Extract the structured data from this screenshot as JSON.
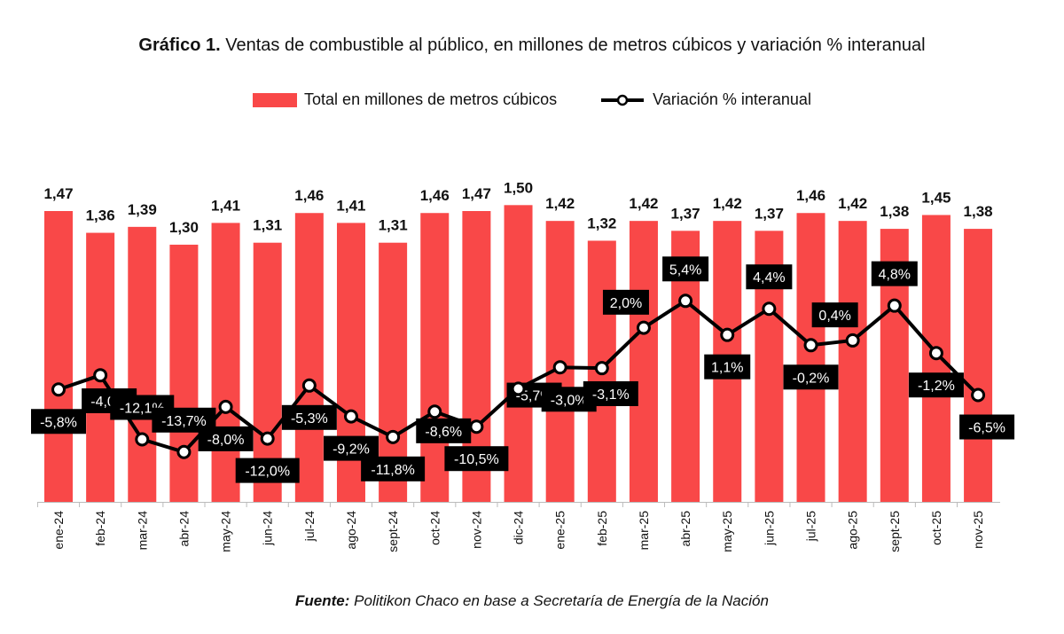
{
  "title": {
    "bold": "Gráfico 1.",
    "text": "Ventas de combustible al público, en millones de metros cúbicos y variación % interanual"
  },
  "source": {
    "bold": "Fuente:",
    "text": "Politikon Chaco en base a Secretaría de Energía de la Nación"
  },
  "chart_data": {
    "type": "bar",
    "categories": [
      "ene-24",
      "feb-24",
      "mar-24",
      "abr-24",
      "may-24",
      "jun-24",
      "jul-24",
      "ago-24",
      "sept-24",
      "oct-24",
      "nov-24",
      "dic-24",
      "ene-25",
      "feb-25",
      "mar-25",
      "abr-25",
      "may-25",
      "jun-25",
      "jul-25",
      "ago-25",
      "sept-25",
      "oct-25",
      "nov-25"
    ],
    "series": [
      {
        "name": "Total en millones de metros cúbicos",
        "type": "bar",
        "color": "#f94848",
        "values": [
          1.47,
          1.36,
          1.39,
          1.3,
          1.41,
          1.31,
          1.46,
          1.41,
          1.31,
          1.46,
          1.47,
          1.5,
          1.42,
          1.32,
          1.42,
          1.37,
          1.42,
          1.37,
          1.46,
          1.42,
          1.38,
          1.45,
          1.38
        ],
        "labels": [
          "1,47",
          "1,36",
          "1,39",
          "1,30",
          "1,41",
          "1,31",
          "1,46",
          "1,41",
          "1,31",
          "1,46",
          "1,47",
          "1,50",
          "1,42",
          "1,32",
          "1,42",
          "1,37",
          "1,42",
          "1,37",
          "1,46",
          "1,42",
          "1,38",
          "1,45",
          "1,38"
        ]
      },
      {
        "name": "Variación % interanual",
        "type": "line",
        "color": "#000000",
        "values": [
          -5.8,
          -4.0,
          -12.1,
          -13.7,
          -8.0,
          -12.0,
          -5.3,
          -9.2,
          -11.8,
          -8.6,
          -10.5,
          -5.7,
          -3.0,
          -3.1,
          2.0,
          5.4,
          1.1,
          4.4,
          -0.2,
          0.4,
          4.8,
          -1.2,
          -6.5
        ],
        "labels": [
          "-5,8%",
          "-4,0%",
          "-12,1%",
          "-13,7%",
          "-8,0%",
          "-12,0%",
          "-5,3%",
          "-9,2%",
          "-11,8%",
          "-8,6%",
          "-10,5%",
          "-5,7%",
          "-3,0%",
          "-3,1%",
          "2,0%",
          "5,4%",
          "1,1%",
          "4,4%",
          "-0,2%",
          "0,4%",
          "4,8%",
          "-1,2%",
          "-6,5%"
        ]
      }
    ],
    "ylim": [
      0,
      1.6
    ],
    "y2lim": [
      -20,
      20
    ],
    "grid": false,
    "legend": "top-center"
  }
}
